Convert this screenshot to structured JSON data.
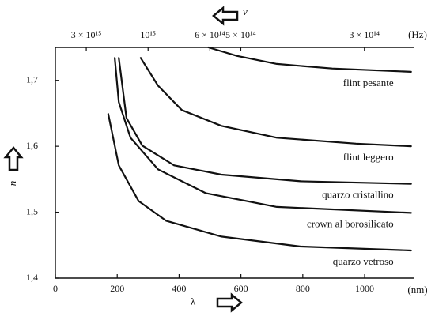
{
  "chart_data": {
    "type": "line",
    "x_label": "λ",
    "x_unit": "(nm)",
    "y_label": "n",
    "x2_label": "ν",
    "x2_unit": "(Hz)",
    "xlim": [
      0,
      1160
    ],
    "ylim": [
      1.4,
      1.75
    ],
    "xticks": [
      0,
      200,
      400,
      600,
      800,
      1000
    ],
    "yticks": [
      {
        "value": 1.4,
        "label": "1,4"
      },
      {
        "value": 1.5,
        "label": "1,5"
      },
      {
        "value": 1.6,
        "label": "1,6"
      },
      {
        "value": 1.7,
        "label": "1,7"
      }
    ],
    "x2ticks": [
      {
        "value": 3000000000000000,
        "label": "3 × 10¹⁵"
      },
      {
        "value": 1000000000000000,
        "label": "10¹⁵"
      },
      {
        "value": 600000000000000,
        "label": "6 × 10¹⁴"
      },
      {
        "value": 500000000000000,
        "label": "5 × 10¹⁴"
      },
      {
        "value": 300000000000000,
        "label": "3 × 10¹⁴"
      }
    ],
    "grid": false,
    "series": [
      {
        "name": "flint pesante",
        "color": "#111111",
        "x": [
          495,
          588,
          716,
          895,
          1150
        ],
        "values": [
          1.75,
          1.737,
          1.725,
          1.718,
          1.713
        ]
      },
      {
        "name": "flint leggero",
        "color": "#111111",
        "x": [
          276,
          332,
          409,
          537,
          716,
          972,
          1150
        ],
        "values": [
          1.734,
          1.692,
          1.655,
          1.631,
          1.613,
          1.604,
          1.6
        ]
      },
      {
        "name": "quarzo cristallino",
        "color": "#111111",
        "x": [
          205,
          230,
          281,
          384,
          537,
          793,
          1150
        ],
        "values": [
          1.734,
          1.643,
          1.601,
          1.571,
          1.557,
          1.547,
          1.543
        ]
      },
      {
        "name": "crown al borosilicato",
        "color": "#111111",
        "x": [
          192,
          205,
          243,
          332,
          486,
          716,
          1150
        ],
        "values": [
          1.734,
          1.667,
          1.613,
          1.565,
          1.529,
          1.508,
          1.499
        ]
      },
      {
        "name": "quarzo vetroso",
        "color": "#111111",
        "x": [
          171,
          205,
          269,
          358,
          537,
          793,
          1150
        ],
        "values": [
          1.649,
          1.571,
          1.517,
          1.487,
          1.463,
          1.448,
          1.442
        ]
      }
    ]
  }
}
